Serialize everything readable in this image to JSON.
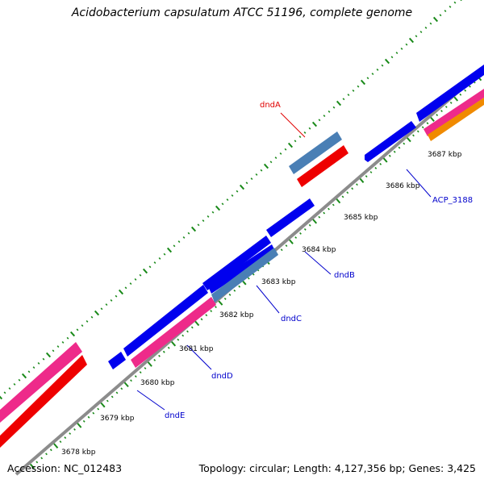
{
  "title": "Acidobacterium capsulatum ATCC 51196, complete genome",
  "footer": {
    "accession": "Accession: NC_012483",
    "summary": "Topology: circular; Length: 4,127,356 bp; Genes: 3,425"
  },
  "colors": {
    "background": "#ffffff",
    "backbone": "#8c8c8c",
    "tick": "#1a8a1a",
    "dnd_gene_label": "#0000cc",
    "dndA_label": "#e00000",
    "blue_feature": "#0000ee",
    "steelblue_feature": "#4a7fb5",
    "red_feature": "#ee0000",
    "magenta_feature": "#ee2a8a",
    "orange_feature": "#f08a00"
  },
  "scale_labels": [
    "3678 kbp",
    "3679 kbp",
    "3680 kbp",
    "3681 kbp",
    "3682 kbp",
    "3683 kbp",
    "3684 kbp",
    "3685 kbp",
    "3686 kbp",
    "3687 kbp"
  ],
  "gene_labels": [
    {
      "id": "dndA",
      "text": "dndA",
      "color": "red"
    },
    {
      "id": "dndB",
      "text": "dndB",
      "color": "blue"
    },
    {
      "id": "dndC",
      "text": "dndC",
      "color": "blue"
    },
    {
      "id": "dndD",
      "text": "dndD",
      "color": "blue"
    },
    {
      "id": "dndE",
      "text": "dndE",
      "color": "blue"
    },
    {
      "id": "acp",
      "text": "ACP_3188",
      "color": "blue"
    }
  ]
}
